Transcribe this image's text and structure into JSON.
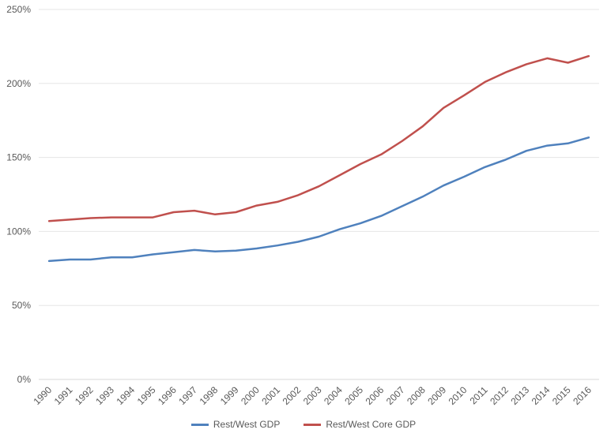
{
  "chart_data": {
    "type": "line",
    "title": "",
    "xlabel": "",
    "ylabel": "",
    "categories": [
      "1990",
      "1991",
      "1992",
      "1993",
      "1994",
      "1995",
      "1996",
      "1997",
      "1998",
      "1999",
      "2000",
      "2001",
      "2002",
      "2003",
      "2004",
      "2005",
      "2006",
      "2007",
      "2008",
      "2009",
      "2010",
      "2011",
      "2012",
      "2013",
      "2014",
      "2015",
      "2016"
    ],
    "ylim": [
      0,
      250
    ],
    "yticks": [
      0,
      50,
      100,
      150,
      200,
      250
    ],
    "ytick_labels": [
      "0%",
      "50%",
      "100%",
      "150%",
      "200%",
      "250%"
    ],
    "grid": true,
    "legend": "bottom",
    "series": [
      {
        "name": "Rest/West GDP",
        "color": "#4F81BD",
        "values": [
          80,
          81,
          81,
          82.5,
          82.5,
          84.5,
          86,
          87.5,
          86.5,
          87,
          88.5,
          90.5,
          93,
          96.5,
          101.5,
          105.5,
          110.5,
          117,
          123.5,
          131,
          137,
          143.5,
          148.5,
          154.5,
          158,
          159.5,
          163.5
        ]
      },
      {
        "name": "Rest/West Core GDP",
        "color": "#C0504D",
        "values": [
          107,
          108,
          109,
          109.5,
          109.5,
          109.5,
          113,
          114,
          111.5,
          113,
          117.5,
          120,
          124.5,
          130.5,
          138,
          145.5,
          152,
          161,
          171,
          183.5,
          192,
          201,
          207.5,
          213,
          217,
          214,
          218.5
        ]
      }
    ]
  }
}
